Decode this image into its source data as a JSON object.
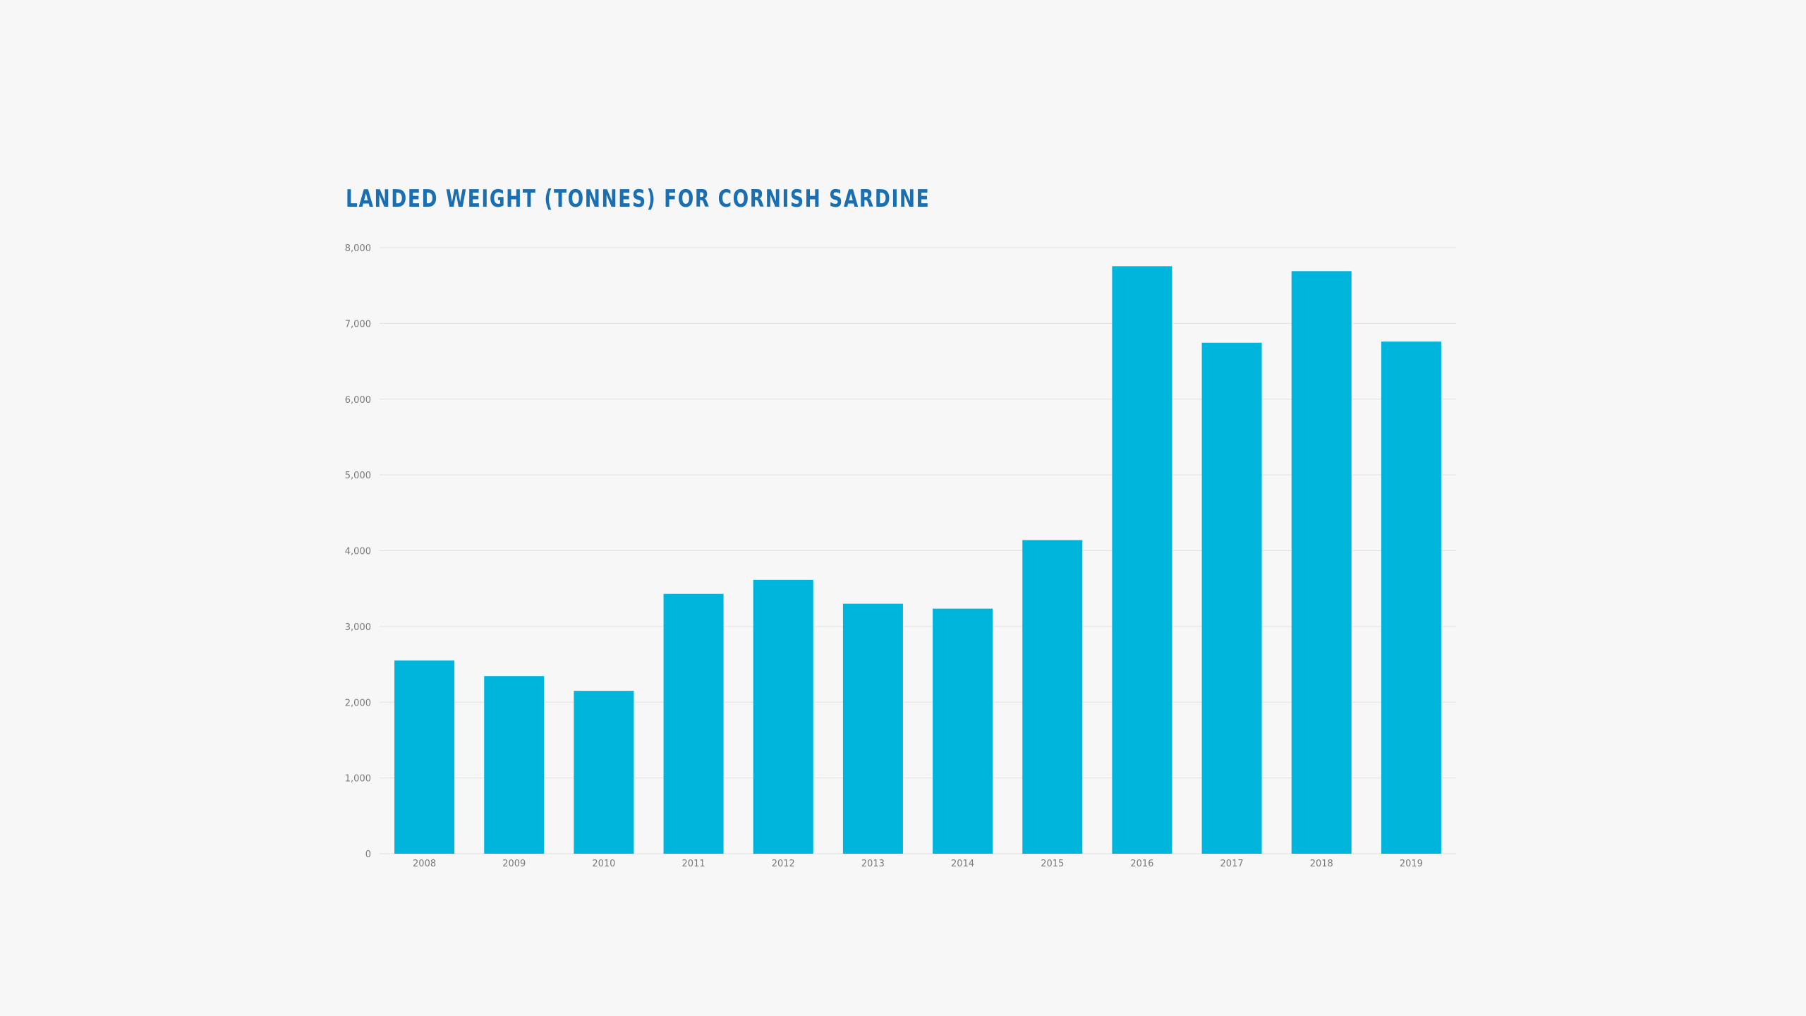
{
  "chart_data": {
    "type": "bar",
    "title": "Landed weight (tonnes) for Cornish sardine",
    "xlabel": "",
    "ylabel": "",
    "categories": [
      "2008",
      "2009",
      "2010",
      "2011",
      "2012",
      "2013",
      "2014",
      "2015",
      "2016",
      "2017",
      "2018",
      "2019"
    ],
    "values": [
      2550,
      2345,
      2150,
      3430,
      3615,
      3300,
      3235,
      4140,
      7755,
      6745,
      7690,
      6760
    ],
    "ylim": [
      0,
      8000
    ],
    "yticks": [
      0,
      1000,
      2000,
      3000,
      4000,
      5000,
      6000,
      7000,
      8000
    ],
    "ytick_labels": [
      "0",
      "1,000",
      "2,000",
      "3,000",
      "4,000",
      "5,000",
      "6,000",
      "7,000",
      "8,000"
    ],
    "grid": true,
    "bar_color": "#00b5dc",
    "title_color": "#1a6fb3",
    "grid_color": "#e2e2e2",
    "tick_color": "#7a7a7a",
    "background": "#f7f7f7"
  }
}
